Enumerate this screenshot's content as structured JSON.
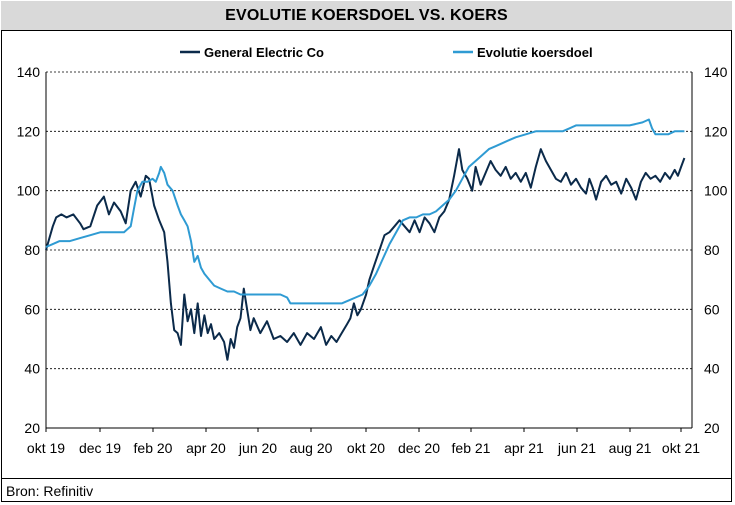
{
  "title": "EVOLUTIE KOERSDOEL VS. KOERS",
  "source": "Bron: Refinitiv",
  "colors": {
    "price": "#0b2a4a",
    "target": "#2f9bd3",
    "grid": "#000000"
  },
  "chart_data": {
    "type": "line",
    "title": "EVOLUTIE KOERSDOEL VS. KOERS",
    "xlabel": "",
    "ylabel": "",
    "ylim": [
      20,
      140
    ],
    "yticks": [
      20,
      40,
      60,
      80,
      100,
      120,
      140
    ],
    "y_axis_sides": "left-and-right",
    "grid": "horizontal-dashed",
    "legend_position": "top",
    "x_ticks": [
      "okt 19",
      "dec 19",
      "feb 20",
      "apr 20",
      "jun 20",
      "aug 20",
      "okt 20",
      "dec 20",
      "feb 21",
      "apr 21",
      "jun 21",
      "aug 21",
      "okt 21"
    ],
    "series": [
      {
        "name": "General Electric Co",
        "color": "#0b2a4a",
        "points": [
          [
            0.0,
            80
          ],
          [
            0.1,
            84
          ],
          [
            0.2,
            88
          ],
          [
            0.3,
            91
          ],
          [
            0.45,
            92
          ],
          [
            0.6,
            91
          ],
          [
            0.8,
            92
          ],
          [
            1.0,
            89
          ],
          [
            1.1,
            87
          ],
          [
            1.3,
            88
          ],
          [
            1.5,
            95
          ],
          [
            1.7,
            98
          ],
          [
            1.85,
            92
          ],
          [
            2.0,
            96
          ],
          [
            2.2,
            93
          ],
          [
            2.35,
            89
          ],
          [
            2.5,
            100
          ],
          [
            2.65,
            103
          ],
          [
            2.8,
            98
          ],
          [
            2.95,
            105
          ],
          [
            3.05,
            104
          ],
          [
            3.2,
            95
          ],
          [
            3.35,
            90
          ],
          [
            3.5,
            86
          ],
          [
            3.6,
            76
          ],
          [
            3.7,
            62
          ],
          [
            3.8,
            53
          ],
          [
            3.9,
            52
          ],
          [
            4.0,
            48
          ],
          [
            4.1,
            65
          ],
          [
            4.2,
            56
          ],
          [
            4.3,
            60
          ],
          [
            4.4,
            52
          ],
          [
            4.5,
            62
          ],
          [
            4.6,
            51
          ],
          [
            4.7,
            58
          ],
          [
            4.8,
            52
          ],
          [
            4.9,
            55
          ],
          [
            5.0,
            50
          ],
          [
            5.15,
            52
          ],
          [
            5.3,
            49
          ],
          [
            5.4,
            43
          ],
          [
            5.5,
            50
          ],
          [
            5.6,
            47
          ],
          [
            5.7,
            54
          ],
          [
            5.8,
            57
          ],
          [
            5.9,
            67
          ],
          [
            6.0,
            60
          ],
          [
            6.1,
            53
          ],
          [
            6.2,
            57
          ],
          [
            6.4,
            52
          ],
          [
            6.6,
            56
          ],
          [
            6.8,
            50
          ],
          [
            7.0,
            51
          ],
          [
            7.2,
            49
          ],
          [
            7.4,
            52
          ],
          [
            7.6,
            48
          ],
          [
            7.8,
            52
          ],
          [
            8.0,
            50
          ],
          [
            8.2,
            54
          ],
          [
            8.35,
            48
          ],
          [
            8.5,
            51
          ],
          [
            8.65,
            49
          ],
          [
            8.8,
            52
          ],
          [
            8.95,
            55
          ],
          [
            9.05,
            57
          ],
          [
            9.15,
            62
          ],
          [
            9.25,
            58
          ],
          [
            9.35,
            60
          ],
          [
            9.5,
            65
          ],
          [
            9.6,
            70
          ],
          [
            9.75,
            75
          ],
          [
            9.9,
            80
          ],
          [
            10.05,
            85
          ],
          [
            10.2,
            86
          ],
          [
            10.35,
            88
          ],
          [
            10.5,
            90
          ],
          [
            10.65,
            88
          ],
          [
            10.8,
            86
          ],
          [
            10.95,
            90
          ],
          [
            11.1,
            86
          ],
          [
            11.25,
            91
          ],
          [
            11.4,
            89
          ],
          [
            11.55,
            86
          ],
          [
            11.7,
            91
          ],
          [
            11.85,
            93
          ],
          [
            12.0,
            97
          ],
          [
            12.15,
            105
          ],
          [
            12.3,
            114
          ],
          [
            12.4,
            107
          ],
          [
            12.55,
            104
          ],
          [
            12.7,
            100
          ],
          [
            12.8,
            108
          ],
          [
            12.95,
            102
          ],
          [
            13.1,
            106
          ],
          [
            13.25,
            110
          ],
          [
            13.4,
            107
          ],
          [
            13.55,
            105
          ],
          [
            13.7,
            108
          ],
          [
            13.85,
            104
          ],
          [
            14.0,
            106
          ],
          [
            14.15,
            103
          ],
          [
            14.3,
            106
          ],
          [
            14.45,
            101
          ],
          [
            14.6,
            108
          ],
          [
            14.75,
            114
          ],
          [
            14.9,
            110
          ],
          [
            15.05,
            107
          ],
          [
            15.2,
            104
          ],
          [
            15.35,
            103
          ],
          [
            15.5,
            106
          ],
          [
            15.65,
            102
          ],
          [
            15.8,
            104
          ],
          [
            15.95,
            101
          ],
          [
            16.1,
            99
          ],
          [
            16.2,
            104
          ],
          [
            16.3,
            101
          ],
          [
            16.4,
            97
          ],
          [
            16.55,
            103
          ],
          [
            16.7,
            105
          ],
          [
            16.85,
            102
          ],
          [
            17.0,
            103
          ],
          [
            17.15,
            99
          ],
          [
            17.3,
            104
          ],
          [
            17.45,
            101
          ],
          [
            17.6,
            97
          ],
          [
            17.75,
            103
          ],
          [
            17.9,
            106
          ],
          [
            18.05,
            104
          ],
          [
            18.2,
            105
          ],
          [
            18.35,
            103
          ],
          [
            18.5,
            106
          ],
          [
            18.65,
            104
          ],
          [
            18.8,
            107
          ],
          [
            18.9,
            105
          ],
          [
            19.0,
            108
          ],
          [
            19.1,
            111
          ]
        ]
      },
      {
        "name": "Evolutie koersdoel",
        "color": "#2f9bd3",
        "points": [
          [
            0.0,
            81
          ],
          [
            0.2,
            82
          ],
          [
            0.4,
            83
          ],
          [
            0.7,
            83
          ],
          [
            1.0,
            84
          ],
          [
            1.3,
            85
          ],
          [
            1.6,
            86
          ],
          [
            2.0,
            86
          ],
          [
            2.3,
            86
          ],
          [
            2.5,
            88
          ],
          [
            2.6,
            94
          ],
          [
            2.7,
            100
          ],
          [
            2.85,
            103
          ],
          [
            3.0,
            103
          ],
          [
            3.15,
            104
          ],
          [
            3.25,
            103
          ],
          [
            3.35,
            106
          ],
          [
            3.4,
            108
          ],
          [
            3.5,
            106
          ],
          [
            3.6,
            102
          ],
          [
            3.75,
            100
          ],
          [
            3.9,
            95
          ],
          [
            4.0,
            92
          ],
          [
            4.1,
            90
          ],
          [
            4.2,
            88
          ],
          [
            4.3,
            83
          ],
          [
            4.4,
            76
          ],
          [
            4.5,
            78
          ],
          [
            4.6,
            74
          ],
          [
            4.7,
            72
          ],
          [
            4.85,
            70
          ],
          [
            5.0,
            68
          ],
          [
            5.2,
            67
          ],
          [
            5.4,
            66
          ],
          [
            5.6,
            66
          ],
          [
            5.8,
            65
          ],
          [
            6.0,
            65
          ],
          [
            6.5,
            65
          ],
          [
            7.0,
            65
          ],
          [
            7.2,
            64
          ],
          [
            7.3,
            62
          ],
          [
            7.6,
            62
          ],
          [
            8.0,
            62
          ],
          [
            8.5,
            62
          ],
          [
            8.8,
            62
          ],
          [
            9.0,
            63
          ],
          [
            9.2,
            64
          ],
          [
            9.4,
            65
          ],
          [
            9.6,
            68
          ],
          [
            9.8,
            72
          ],
          [
            10.0,
            77
          ],
          [
            10.2,
            82
          ],
          [
            10.4,
            86
          ],
          [
            10.6,
            90
          ],
          [
            10.8,
            91
          ],
          [
            11.0,
            91
          ],
          [
            11.2,
            92
          ],
          [
            11.4,
            92
          ],
          [
            11.6,
            93
          ],
          [
            11.8,
            95
          ],
          [
            12.0,
            97
          ],
          [
            12.2,
            100
          ],
          [
            12.4,
            104
          ],
          [
            12.6,
            108
          ],
          [
            12.8,
            110
          ],
          [
            13.0,
            112
          ],
          [
            13.2,
            114
          ],
          [
            13.4,
            115
          ],
          [
            13.6,
            116
          ],
          [
            13.8,
            117
          ],
          [
            14.0,
            118
          ],
          [
            14.3,
            119
          ],
          [
            14.6,
            120
          ],
          [
            15.0,
            120
          ],
          [
            15.4,
            120
          ],
          [
            15.6,
            121
          ],
          [
            15.8,
            122
          ],
          [
            16.2,
            122
          ],
          [
            16.6,
            122
          ],
          [
            17.0,
            122
          ],
          [
            17.4,
            122
          ],
          [
            17.8,
            123
          ],
          [
            18.0,
            124
          ],
          [
            18.1,
            121
          ],
          [
            18.2,
            119
          ],
          [
            18.4,
            119
          ],
          [
            18.6,
            119
          ],
          [
            18.8,
            120
          ],
          [
            18.9,
            120
          ],
          [
            19.0,
            120
          ],
          [
            19.1,
            120
          ]
        ]
      }
    ]
  }
}
